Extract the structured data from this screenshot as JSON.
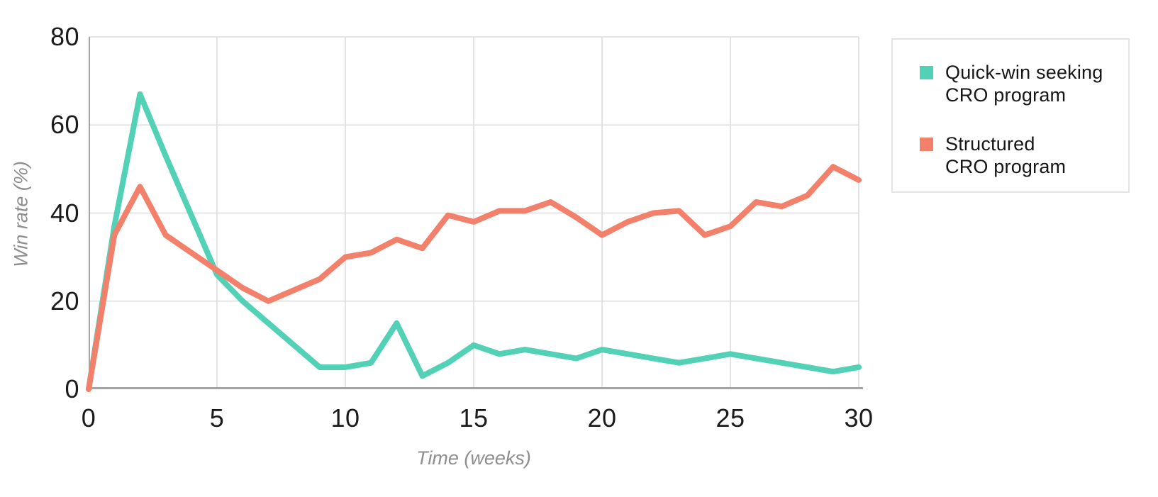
{
  "chart_data": {
    "type": "line",
    "title": "",
    "xlabel": "Time (weeks)",
    "ylabel": "Win rate (%)",
    "xlim": [
      0,
      30
    ],
    "ylim": [
      0,
      80
    ],
    "x_ticks": [
      0,
      5,
      10,
      15,
      20,
      25,
      30
    ],
    "y_ticks": [
      0,
      20,
      40,
      60,
      80
    ],
    "grid": true,
    "legend_position": "right",
    "x": [
      0,
      1,
      2,
      3,
      4,
      5,
      6,
      7,
      8,
      9,
      10,
      11,
      12,
      13,
      14,
      15,
      16,
      17,
      18,
      19,
      20,
      21,
      22,
      23,
      24,
      25,
      26,
      27,
      28,
      29,
      30
    ],
    "series": [
      {
        "name": "Quick-win seeking CRO program",
        "label_lines": [
          "Quick-win seeking",
          "CRO program"
        ],
        "color": "#53d1b7",
        "values": [
          0,
          37,
          67,
          53,
          39.5,
          26,
          20,
          15,
          10,
          5,
          5,
          6,
          15,
          3,
          6,
          10,
          8,
          9,
          8,
          7,
          9,
          8,
          7,
          6,
          7,
          8,
          7,
          6,
          5,
          4,
          5
        ]
      },
      {
        "name": "Structured CRO program",
        "label_lines": [
          "Structured",
          "CRO program"
        ],
        "color": "#f2806a",
        "values": [
          0,
          35,
          46,
          35,
          31,
          27,
          23,
          20,
          22.5,
          25,
          30,
          31,
          34,
          32,
          39.5,
          38,
          40.5,
          40.5,
          42.5,
          39,
          35,
          38,
          40,
          40.5,
          35,
          37,
          42.5,
          41.5,
          44,
          50.5,
          47.5
        ]
      }
    ]
  },
  "style": {
    "gridline_color": "#dcdcdc",
    "axis_line_color": "#a5a5a5",
    "tick_text_color": "#1b1b1b",
    "axis_title_color": "#8e8e8e",
    "legend_border_color": "#e4e4e4"
  }
}
